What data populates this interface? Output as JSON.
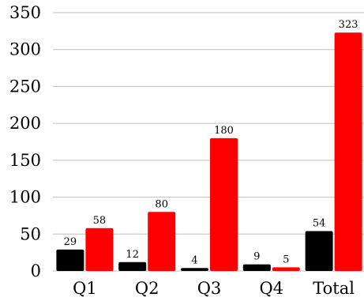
{
  "chart_data": {
    "type": "bar",
    "categories": [
      "Q1",
      "Q2",
      "Q3",
      "Q4",
      "Total"
    ],
    "series": [
      {
        "color": "#000000",
        "values": [
          29,
          12,
          4,
          9,
          54
        ]
      },
      {
        "color": "#ff0000",
        "values": [
          58,
          80,
          180,
          5,
          323
        ]
      }
    ],
    "ylim": [
      0,
      350
    ],
    "yticks": [
      0,
      50,
      100,
      150,
      200,
      250,
      300,
      350
    ],
    "grid": true,
    "legend": "none",
    "data_labels": true
  }
}
